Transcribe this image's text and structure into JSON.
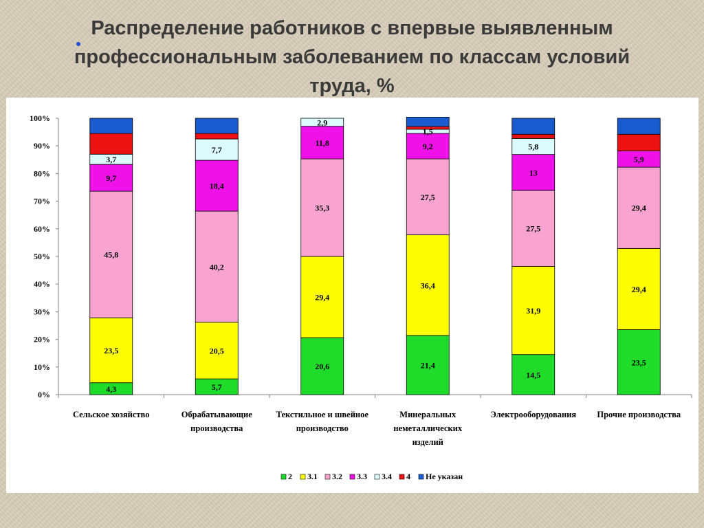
{
  "title": {
    "lines": [
      "Распределение работников с впервые выявленным",
      "профессиональным заболеванием по классам условий",
      "труда, %"
    ]
  },
  "colors": {
    "title_text": "#3a3a3a",
    "slide_background": "#d8cdb9",
    "bullet_dot": "#1f4fd6"
  },
  "chart_data": {
    "type": "bar",
    "stacked": true,
    "percent": true,
    "y_ticks": [
      "0%",
      "10%",
      "20%",
      "30%",
      "40%",
      "50%",
      "60%",
      "70%",
      "80%",
      "90%",
      "100%"
    ],
    "ylim": [
      0,
      100
    ],
    "grid": false,
    "legend_position": "bottom",
    "categories": [
      [
        "Сельское хозяйство"
      ],
      [
        "Обрабатывающие",
        "производства"
      ],
      [
        "Текстильное и швейное",
        "производство"
      ],
      [
        "Минеральных",
        "неметаллических",
        "изделий"
      ],
      [
        "Электрооборудования"
      ],
      [
        "Прочие производства"
      ]
    ],
    "series": [
      {
        "name": "2",
        "color": "#1fdc2a",
        "values": [
          4.3,
          5.7,
          20.6,
          21.4,
          14.5,
          23.5
        ],
        "labels": [
          "4,3",
          "5,7",
          "20,6",
          "21,4",
          "14,5",
          "23,5"
        ]
      },
      {
        "name": "3.1",
        "color": "#ffff00",
        "values": [
          23.5,
          20.5,
          29.4,
          36.4,
          31.9,
          29.4
        ],
        "labels": [
          "23,5",
          "20,5",
          "29,4",
          "36,4",
          "31,9",
          "29,4"
        ]
      },
      {
        "name": "3.2",
        "color": "#f8a3d0",
        "values": [
          45.8,
          40.2,
          35.3,
          27.5,
          27.5,
          29.4
        ],
        "labels": [
          "45,8",
          "40,2",
          "35,3",
          "27,5",
          "27,5",
          "29,4"
        ]
      },
      {
        "name": "3.3",
        "color": "#f011e8",
        "values": [
          9.7,
          18.4,
          11.8,
          9.2,
          13,
          5.9
        ],
        "labels": [
          "9,7",
          "18,4",
          "11,8",
          "9,2",
          "13",
          "5,9"
        ]
      },
      {
        "name": "3.4",
        "color": "#dbfbfd",
        "values": [
          3.7,
          7.7,
          2.9,
          1.5,
          5.8,
          0
        ],
        "labels": [
          "3,7",
          "7,7",
          "2,9",
          "1,5",
          "5,8",
          ""
        ]
      },
      {
        "name": "4",
        "color": "#ee1111",
        "values": [
          7.5,
          2.0,
          0,
          1.0,
          1.5,
          6.0
        ],
        "labels": [
          "",
          "",
          "",
          "",
          "",
          ""
        ]
      },
      {
        "name": "Не указан",
        "color": "#1a5bd0",
        "values": [
          5.5,
          5.5,
          0,
          3.4,
          5.8,
          5.8
        ],
        "labels": [
          "",
          "",
          "",
          "",
          "",
          ""
        ]
      }
    ]
  }
}
